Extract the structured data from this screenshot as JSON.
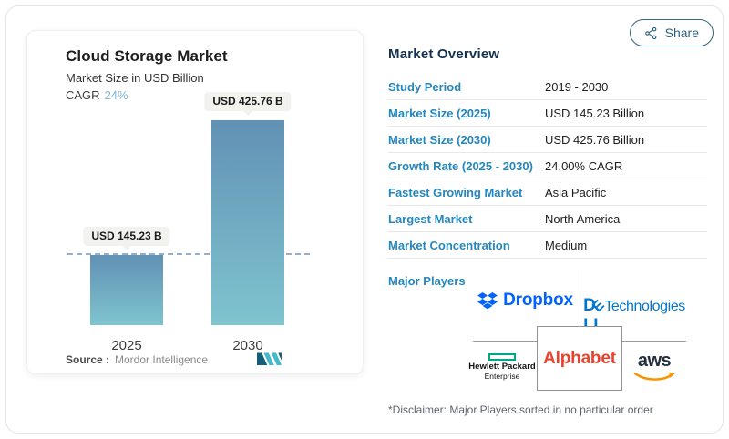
{
  "header": {
    "share_label": "Share"
  },
  "chart_panel": {
    "source_label": "Source :",
    "source_value": "Mordor Intelligence"
  },
  "chart_data": {
    "type": "bar",
    "title": "Cloud Storage Market",
    "subtitle": "Market Size in USD Billion",
    "cagr_label": "CAGR",
    "cagr_value": "24%",
    "categories": [
      "2025",
      "2030"
    ],
    "values": [
      145.23,
      425.76
    ],
    "bar_labels": [
      "USD 145.23 B",
      "USD 425.76 B"
    ],
    "unit": "USD Billion",
    "ylim": [
      0,
      425.76
    ],
    "grid": false,
    "legend": false,
    "reference_line": {
      "value": 145.23,
      "style": "dashed",
      "color": "#93b1cc"
    },
    "bar_color_top": "#6191b4",
    "bar_color_bottom": "#7fc4cf"
  },
  "overview": {
    "title": "Market Overview",
    "rows": [
      {
        "label": "Study Period",
        "value": "2019 - 2030"
      },
      {
        "label": "Market Size (2025)",
        "value": "USD 145.23 Billion"
      },
      {
        "label": "Market Size (2030)",
        "value": "USD 425.76 Billion"
      },
      {
        "label": "Growth Rate (2025 - 2030)",
        "value": "24.00% CAGR"
      },
      {
        "label": "Fastest Growing Market",
        "value": "Asia Pacific"
      },
      {
        "label": "Largest Market",
        "value": "North America"
      },
      {
        "label": "Market Concentration",
        "value": "Medium"
      }
    ],
    "major_players_label": "Major Players",
    "players": {
      "dropbox": {
        "name": "Dropbox"
      },
      "dell": {
        "d": "D",
        "e": "E",
        "ll": "LL",
        "tech": "Technologies"
      },
      "hpe": {
        "line1": "Hewlett Packard",
        "line2": "Enterprise"
      },
      "alphabet": {
        "name": "Alphabet"
      },
      "aws": {
        "name": "aws"
      }
    },
    "disclaimer": "*Disclaimer: Major Players sorted in no particular order"
  },
  "icons": {
    "share": "share-nodes-icon",
    "dropbox": "dropbox-diamonds-icon",
    "hpe": "green-rectangle-icon",
    "aws_smile": "orange-smile-arrow-icon",
    "mordor": "mordor-m-mark-icon"
  },
  "colors": {
    "accent_blue": "#2487be",
    "title_navy": "#14314e",
    "cagr_value_blue": "#7db5da",
    "dropbox_blue": "#0062ff",
    "dell_blue": "#0076ce",
    "alphabet_red": "#e8432f",
    "hpe_green": "#00a982",
    "aws_orange": "#f79400",
    "divider_gray": "#e8e8e8"
  }
}
